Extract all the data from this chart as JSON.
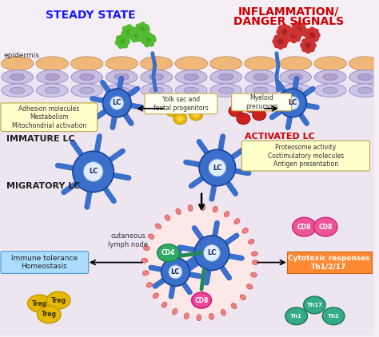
{
  "bg_color": "#ffffff",
  "title_steady": "STEADY STATE",
  "title_inflam": "INFLAMMATION/\nDANGER SIGNALS",
  "label_epidermis": "epidermis",
  "label_immature": "IMMATURE LC",
  "label_migratory": "MIGRATORY LC",
  "label_activated": "ACTIVATED LC",
  "label_lymph": "cutaneous\nlymph node",
  "box_adhesion": "Adhesion molecules\nMestabolism\nMitochondrial activation",
  "box_yolk": "Yolk sac and\nfoetal progenitors",
  "box_myeloid": "Myeloid\nprecursors",
  "box_proteosome": "Proteosome activity\nCostimulatory molecules\nAntigen presentation",
  "box_immune": "Immune tolerance\nHomeostasis",
  "box_cytotoxic": "Cytotoxic responses\nTh1/2/17",
  "color_steady_title": "#1a1aff",
  "color_inflam_title": "#cc0000",
  "color_activated_title": "#cc0000",
  "color_lc_blue": "#3a6fcc",
  "color_yolk_cells": "#e8b800",
  "color_myeloid_cells": "#cc2222",
  "color_lymph_fill": "#fde8e8",
  "color_cd4": "#33aa66",
  "color_cd8_pink": "#ee4499",
  "color_treg": "#e8b800",
  "color_th_green": "#33aa88",
  "color_box_yellow": "#ffffcc",
  "color_box_blue": "#aaddff",
  "color_box_orange": "#ff8833",
  "color_green_particles": "#44aa22",
  "color_red_particles": "#aa2222",
  "color_epi_top": "#f0b878",
  "color_epi_mid": "#c8bedd",
  "color_epi_nuc": "#b0a0d0",
  "dermis_bg": "#e8e0f0"
}
